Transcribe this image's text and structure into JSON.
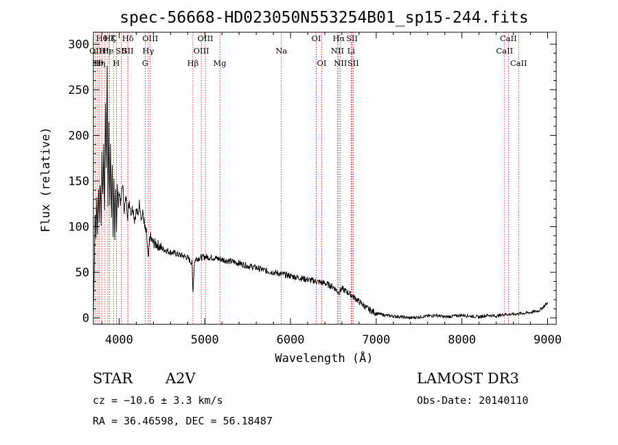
{
  "chart_data": {
    "type": "line",
    "title": "spec-56668-HD023050N553254B01_sp15-244.fits",
    "xlabel": "Wavelength (Å)",
    "ylabel": "Flux (relative)",
    "xlim": [
      3700,
      9100
    ],
    "ylim": [
      -7,
      313
    ],
    "x_ticks": [
      4000,
      5000,
      6000,
      7000,
      8000,
      9000
    ],
    "x_tick_labels": [
      "4000",
      "5000",
      "6000",
      "7000",
      "8000",
      "9000"
    ],
    "y_ticks": [
      0,
      50,
      100,
      150,
      200,
      250,
      300
    ],
    "y_tick_labels": [
      "0",
      "50",
      "100",
      "150",
      "200",
      "250",
      "300"
    ],
    "series": [
      {
        "name": "spectrum",
        "x": [
          3700,
          3710,
          3720,
          3730,
          3740,
          3750,
          3760,
          3770,
          3780,
          3790,
          3800,
          3810,
          3820,
          3830,
          3840,
          3850,
          3860,
          3870,
          3880,
          3890,
          3900,
          3910,
          3920,
          3930,
          3940,
          3950,
          3960,
          3970,
          3980,
          3990,
          4000,
          4020,
          4040,
          4060,
          4080,
          4100,
          4120,
          4140,
          4160,
          4180,
          4200,
          4220,
          4240,
          4260,
          4280,
          4300,
          4320,
          4340,
          4360,
          4380,
          4400,
          4450,
          4500,
          4550,
          4600,
          4650,
          4700,
          4750,
          4800,
          4850,
          4861,
          4880,
          4900,
          4950,
          5000,
          5100,
          5200,
          5300,
          5400,
          5500,
          5600,
          5700,
          5800,
          5900,
          6000,
          6100,
          6200,
          6300,
          6400,
          6500,
          6563,
          6600,
          6700,
          6800,
          6900,
          7000,
          7100,
          7200,
          7300,
          7400,
          7500,
          7600,
          7700,
          7800,
          7900,
          8000,
          8100,
          8200,
          8300,
          8400,
          8500,
          8600,
          8700,
          8800,
          8900,
          8950,
          9000
        ],
        "values": [
          0,
          60,
          118,
          88,
          130,
          95,
          140,
          110,
          150,
          105,
          180,
          130,
          190,
          115,
          240,
          160,
          275,
          120,
          215,
          125,
          185,
          110,
          168,
          92,
          155,
          80,
          138,
          100,
          150,
          118,
          140,
          125,
          148,
          118,
          132,
          112,
          128,
          115,
          122,
          108,
          118,
          112,
          128,
          108,
          115,
          98,
          92,
          62,
          90,
          85,
          82,
          80,
          76,
          74,
          72,
          71,
          69,
          68,
          66,
          60,
          28,
          62,
          65,
          66,
          67,
          66,
          64,
          62,
          60,
          57,
          55,
          52,
          50,
          48,
          46,
          44,
          42,
          40,
          38,
          34,
          28,
          32,
          26,
          18,
          10,
          5,
          3,
          2,
          1,
          0,
          1,
          2,
          3,
          1,
          2,
          3,
          2,
          1,
          3,
          2,
          4,
          4,
          5,
          6,
          8,
          12,
          17
        ]
      }
    ],
    "line_markers": [
      {
        "wavelength": 3726,
        "label": "OII",
        "row": 1
      },
      {
        "wavelength": 3750,
        "label": "Hθ",
        "row": 2
      },
      {
        "wavelength": 3771,
        "label": "Hη",
        "row": 2
      },
      {
        "wavelength": 3798,
        "label": "Hθ",
        "row": 0
      },
      {
        "wavelength": 3835,
        "label": "Hη",
        "row": 1
      },
      {
        "wavelength": 3869,
        "label": "He",
        "row": 1
      },
      {
        "wavelength": 3889,
        "label": "Hζ",
        "row": 0
      },
      {
        "wavelength": 3934,
        "label": "K",
        "row": 0
      },
      {
        "wavelength": 3968,
        "label": "H",
        "row": 2
      },
      {
        "wavelength": 4026,
        "label": "SII",
        "row": 1
      },
      {
        "wavelength": 4102,
        "label": "Hδ",
        "row": 0
      },
      {
        "wavelength": 4102,
        "label": "SII",
        "row": 1
      },
      {
        "wavelength": 4304,
        "label": "G",
        "row": 2
      },
      {
        "wavelength": 4340,
        "label": "Hγ",
        "row": 1
      },
      {
        "wavelength": 4363,
        "label": "OIII",
        "row": 0
      },
      {
        "wavelength": 4861,
        "label": "Hβ",
        "row": 2
      },
      {
        "wavelength": 4959,
        "label": "OIII",
        "row": 1
      },
      {
        "wavelength": 5007,
        "label": "OIII",
        "row": 0
      },
      {
        "wavelength": 5175,
        "label": "Mg",
        "row": 2
      },
      {
        "wavelength": 5893,
        "label": "Na",
        "row": 1
      },
      {
        "wavelength": 6300,
        "label": "OI",
        "row": 0
      },
      {
        "wavelength": 6364,
        "label": "OI",
        "row": 2
      },
      {
        "wavelength": 6548,
        "label": "NII",
        "row": 1
      },
      {
        "wavelength": 6563,
        "label": "Hα",
        "row": 0
      },
      {
        "wavelength": 6583,
        "label": "NII",
        "row": 2
      },
      {
        "wavelength": 6707,
        "label": "Li",
        "row": 1
      },
      {
        "wavelength": 6717,
        "label": "SII",
        "row": 0
      },
      {
        "wavelength": 6731,
        "label": "SII",
        "row": 2
      },
      {
        "wavelength": 8498,
        "label": "CaII",
        "row": 1
      },
      {
        "wavelength": 8542,
        "label": "CaII",
        "row": 0
      },
      {
        "wavelength": 8662,
        "label": "CaII",
        "row": 2
      }
    ],
    "line_marker_color": "#cc0000"
  },
  "info": {
    "object_class": "STAR",
    "subclass": "A2V",
    "survey": "LAMOST DR3",
    "cz": "cz = −10.6 ± 3.3 km/s",
    "obs_date": "Obs-Date: 20140110",
    "coords": "RA =  36.46598, DEC =  56.18487"
  }
}
